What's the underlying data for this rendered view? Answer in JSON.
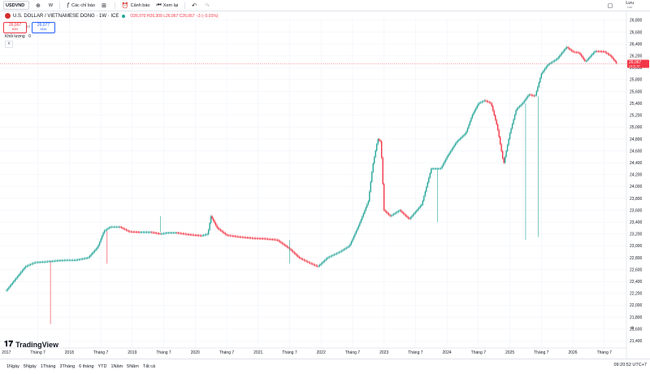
{
  "toolbar": {
    "symbol": "USDVND",
    "interval": "W",
    "indicators_label": "Các chỉ báo",
    "alerts_label": "Cảnh báo",
    "replay_label": "Xem lại",
    "save_label": "Lưu",
    "save_sub": "Lưu"
  },
  "legend": {
    "title": "U.S. DOLLAR / VIETNAMESE DONG · 1W · ICE",
    "ohlc": "O26,070 H26,300 L26,067 C26,067 −3 (−0.01%)",
    "sell_price": "26,067",
    "sell_label": "BÁN",
    "buy_price": "26,077",
    "buy_label": "MUA",
    "spread": "10",
    "volume_label": "Khối lượng",
    "volume_value": "0"
  },
  "last_price": {
    "value": "26,067",
    "sub": "19:21:07",
    "color": "#f23645"
  },
  "chart_data": {
    "type": "candlestick",
    "y_axis_ticks": [
      21400,
      21600,
      21800,
      22000,
      22200,
      22400,
      22600,
      22800,
      23000,
      23200,
      23400,
      23600,
      23800,
      24000,
      24200,
      24400,
      24600,
      24800,
      25000,
      25200,
      25400,
      25600,
      25800,
      26000,
      26200,
      26400,
      26600,
      26800
    ],
    "ylim": [
      21280,
      26840
    ],
    "x_axis_labels": [
      "2017",
      "Tháng 7",
      "2018",
      "Tháng 7",
      "2019",
      "Tháng 7",
      "2020",
      "Tháng 7",
      "2021",
      "Tháng 7",
      "2022",
      "Tháng 7",
      "2023",
      "Tháng 7",
      "2024",
      "Tháng 7",
      "2025",
      "Tháng 7",
      "2026",
      "Tháng 7"
    ],
    "xlim": [
      2016.95,
      2026.8
    ],
    "series": [
      {
        "x": [
          2017.0,
          2017.15,
          2017.3,
          2017.45,
          2017.6,
          2017.8,
          2017.95,
          2018.1,
          2018.3,
          2018.45,
          2018.55,
          2018.65,
          2018.8,
          2018.95,
          2019.1,
          2019.3,
          2019.45,
          2019.55,
          2019.7,
          2019.9,
          2020.1,
          2020.2,
          2020.25,
          2020.35,
          2020.5,
          2020.7,
          2020.9,
          2021.1,
          2021.3,
          2021.5,
          2021.65,
          2021.8,
          2021.95,
          2022.1,
          2022.3,
          2022.45,
          2022.6,
          2022.75,
          2022.82,
          2022.9,
          2022.95,
          2023.0,
          2023.1,
          2023.25,
          2023.4,
          2023.6,
          2023.75,
          2023.9,
          2024.0,
          2024.15,
          2024.3,
          2024.4,
          2024.5,
          2024.6,
          2024.7,
          2024.8,
          2024.9,
          2025.0,
          2025.1,
          2025.2,
          2025.3,
          2025.4,
          2025.5,
          2025.6,
          2025.75,
          2025.9,
          2026.0,
          2026.1,
          2026.2,
          2026.35,
          2026.5,
          2026.6,
          2026.7
        ],
        "y": [
          22250,
          22450,
          22650,
          22720,
          22730,
          22750,
          22760,
          22760,
          22800,
          22980,
          23250,
          23320,
          23320,
          23240,
          23230,
          23230,
          23200,
          23220,
          23220,
          23190,
          23170,
          23200,
          23500,
          23300,
          23180,
          23150,
          23130,
          23120,
          23100,
          22950,
          22800,
          22720,
          22650,
          22800,
          22900,
          23000,
          23350,
          23750,
          24350,
          24800,
          24750,
          23600,
          23500,
          23600,
          23450,
          23700,
          24300,
          24300,
          24500,
          24750,
          24900,
          25200,
          25400,
          25450,
          25400,
          25000,
          24380,
          24900,
          25300,
          25400,
          25550,
          25520,
          25900,
          26050,
          26150,
          26350,
          26270,
          26250,
          26100,
          26280,
          26270,
          26200,
          26067
        ]
      }
    ]
  },
  "bottom_bar": {
    "ranges": [
      "1Ngày",
      "5Ngày",
      "1Tháng",
      "3Tháng",
      "6 tháng",
      "YTD",
      "1Năm",
      "5Năm",
      "Tất cả"
    ],
    "clock": "09:20:52 UTC+7"
  },
  "branding": {
    "logo_text": "TradingView"
  },
  "colors": {
    "up": "#26a69a",
    "down": "#f23645",
    "grid": "#f0f3fa"
  }
}
